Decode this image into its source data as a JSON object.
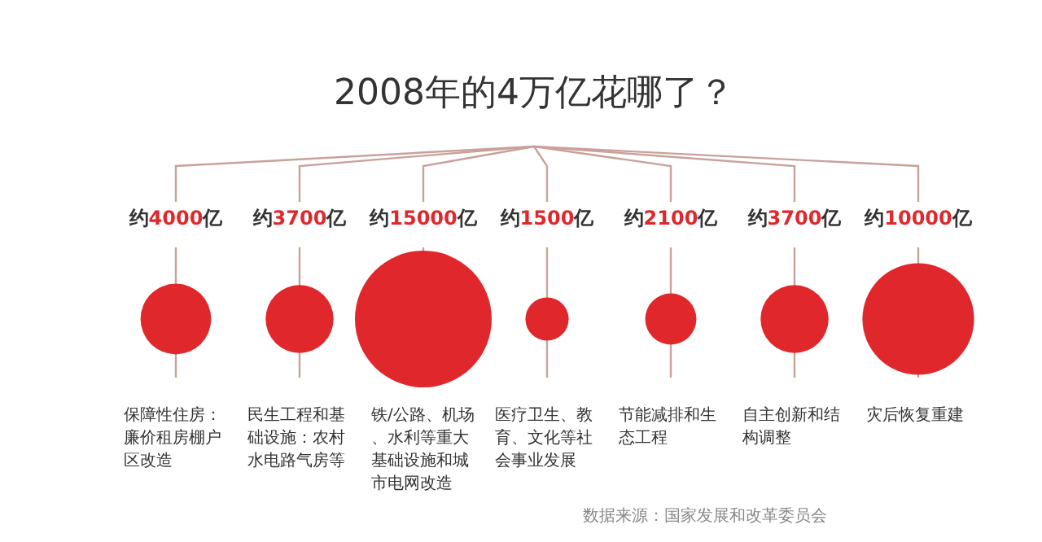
{
  "chart_data": {
    "type": "other",
    "title": "2008年的4万亿花哪了？",
    "categories": [
      "保障性住房：廉价租房棚户区改造",
      "民生工程和基础设施：农村水电路气房等",
      "铁/公路、机场、水利等重大基础设施和城市电网改造",
      "医疗卫生、教育、文化等社会事业发展",
      "节能减排和生态工程",
      "自主创新和结构调整",
      "灾后恢复重建"
    ],
    "values": [
      4000,
      3700,
      15000,
      1500,
      2100,
      3700,
      10000
    ],
    "value_labels": [
      "约4000亿",
      "约3700亿",
      "约15000亿",
      "约1500亿",
      "约2100亿",
      "约3700亿",
      "约10000亿"
    ],
    "color": "#e0282c",
    "annotations": [
      "数据来源：国家发展和改革委员会"
    ]
  }
}
